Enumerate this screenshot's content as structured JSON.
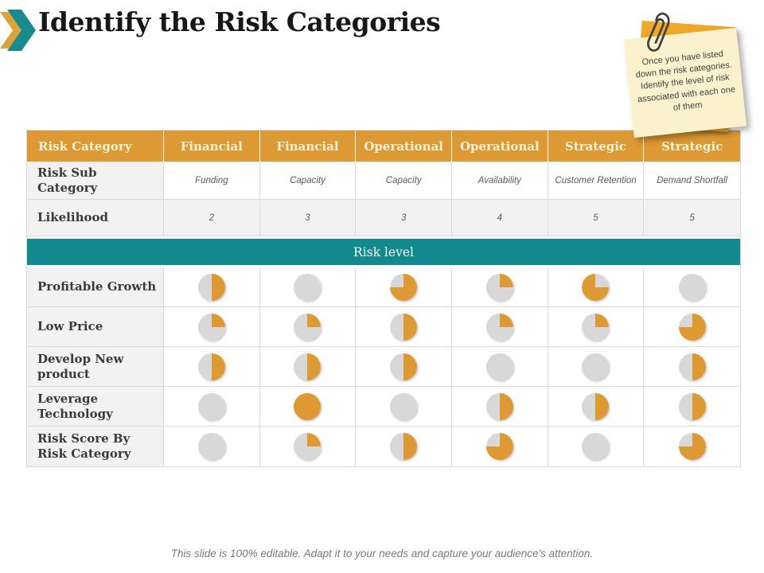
{
  "title": "Identify the Risk Categories",
  "note": {
    "text": "Once you have listed down the risk categories. Identify the level of risk associated with each one of them"
  },
  "footer": {
    "text": "This slide is 100% editable. Adapt it to your needs and capture your audience's attention."
  },
  "colors": {
    "header_orange": "#DD9933",
    "banner_teal": "#12898C",
    "pie_orange": "#DD9933",
    "pie_gray": "#D8D8D8",
    "note_front": "#FBF2CD",
    "note_back": "#EFA928",
    "chevron_teal": "#1B8A8F",
    "chevron_gold": "#D9A43B"
  },
  "table": {
    "header": [
      "Risk Category",
      "Financial",
      "Financial",
      "Operational",
      "Operational",
      "Strategic",
      "Strategic"
    ],
    "sub_row": {
      "label": "Risk Sub Category",
      "values": [
        "Funding",
        "Capacity",
        "Capacity",
        "Availability",
        "Customer Retention",
        "Demand Shortfall"
      ]
    },
    "likelihood_row": {
      "label": "Likelihood",
      "values": [
        "2",
        "3",
        "3",
        "4",
        "5",
        "5"
      ]
    },
    "banner": "Risk level",
    "risk_rows": [
      {
        "label": "Profitable Growth",
        "pies": [
          {
            "fill": 50,
            "rot": 0
          },
          {
            "fill": 0,
            "rot": 0
          },
          {
            "fill": 75,
            "rot": 0
          },
          {
            "fill": 25,
            "rot": 0
          },
          {
            "fill": 75,
            "rot": 90
          },
          {
            "fill": 0,
            "rot": 0
          }
        ]
      },
      {
        "label": "Low Price",
        "pies": [
          {
            "fill": 25,
            "rot": 0
          },
          {
            "fill": 25,
            "rot": 0
          },
          {
            "fill": 50,
            "rot": 0
          },
          {
            "fill": 25,
            "rot": 0
          },
          {
            "fill": 25,
            "rot": 0
          },
          {
            "fill": 75,
            "rot": 0
          }
        ]
      },
      {
        "label": "Develop New product",
        "pies": [
          {
            "fill": 50,
            "rot": 0
          },
          {
            "fill": 50,
            "rot": 0
          },
          {
            "fill": 50,
            "rot": 0
          },
          {
            "fill": 0,
            "rot": 0
          },
          {
            "fill": 0,
            "rot": 0
          },
          {
            "fill": 50,
            "rot": 0
          }
        ]
      },
      {
        "label": "Leverage Technology",
        "pies": [
          {
            "fill": 0,
            "rot": 0
          },
          {
            "fill": 100,
            "rot": 0
          },
          {
            "fill": 0,
            "rot": 0
          },
          {
            "fill": 50,
            "rot": 0
          },
          {
            "fill": 50,
            "rot": 0
          },
          {
            "fill": 50,
            "rot": 0
          }
        ]
      },
      {
        "label": "Risk Score By Risk Category",
        "pies": [
          {
            "fill": 0,
            "rot": 0
          },
          {
            "fill": 25,
            "rot": 0
          },
          {
            "fill": 50,
            "rot": 0
          },
          {
            "fill": 75,
            "rot": 0
          },
          {
            "fill": 0,
            "rot": 0
          },
          {
            "fill": 75,
            "rot": 0
          }
        ]
      }
    ]
  }
}
